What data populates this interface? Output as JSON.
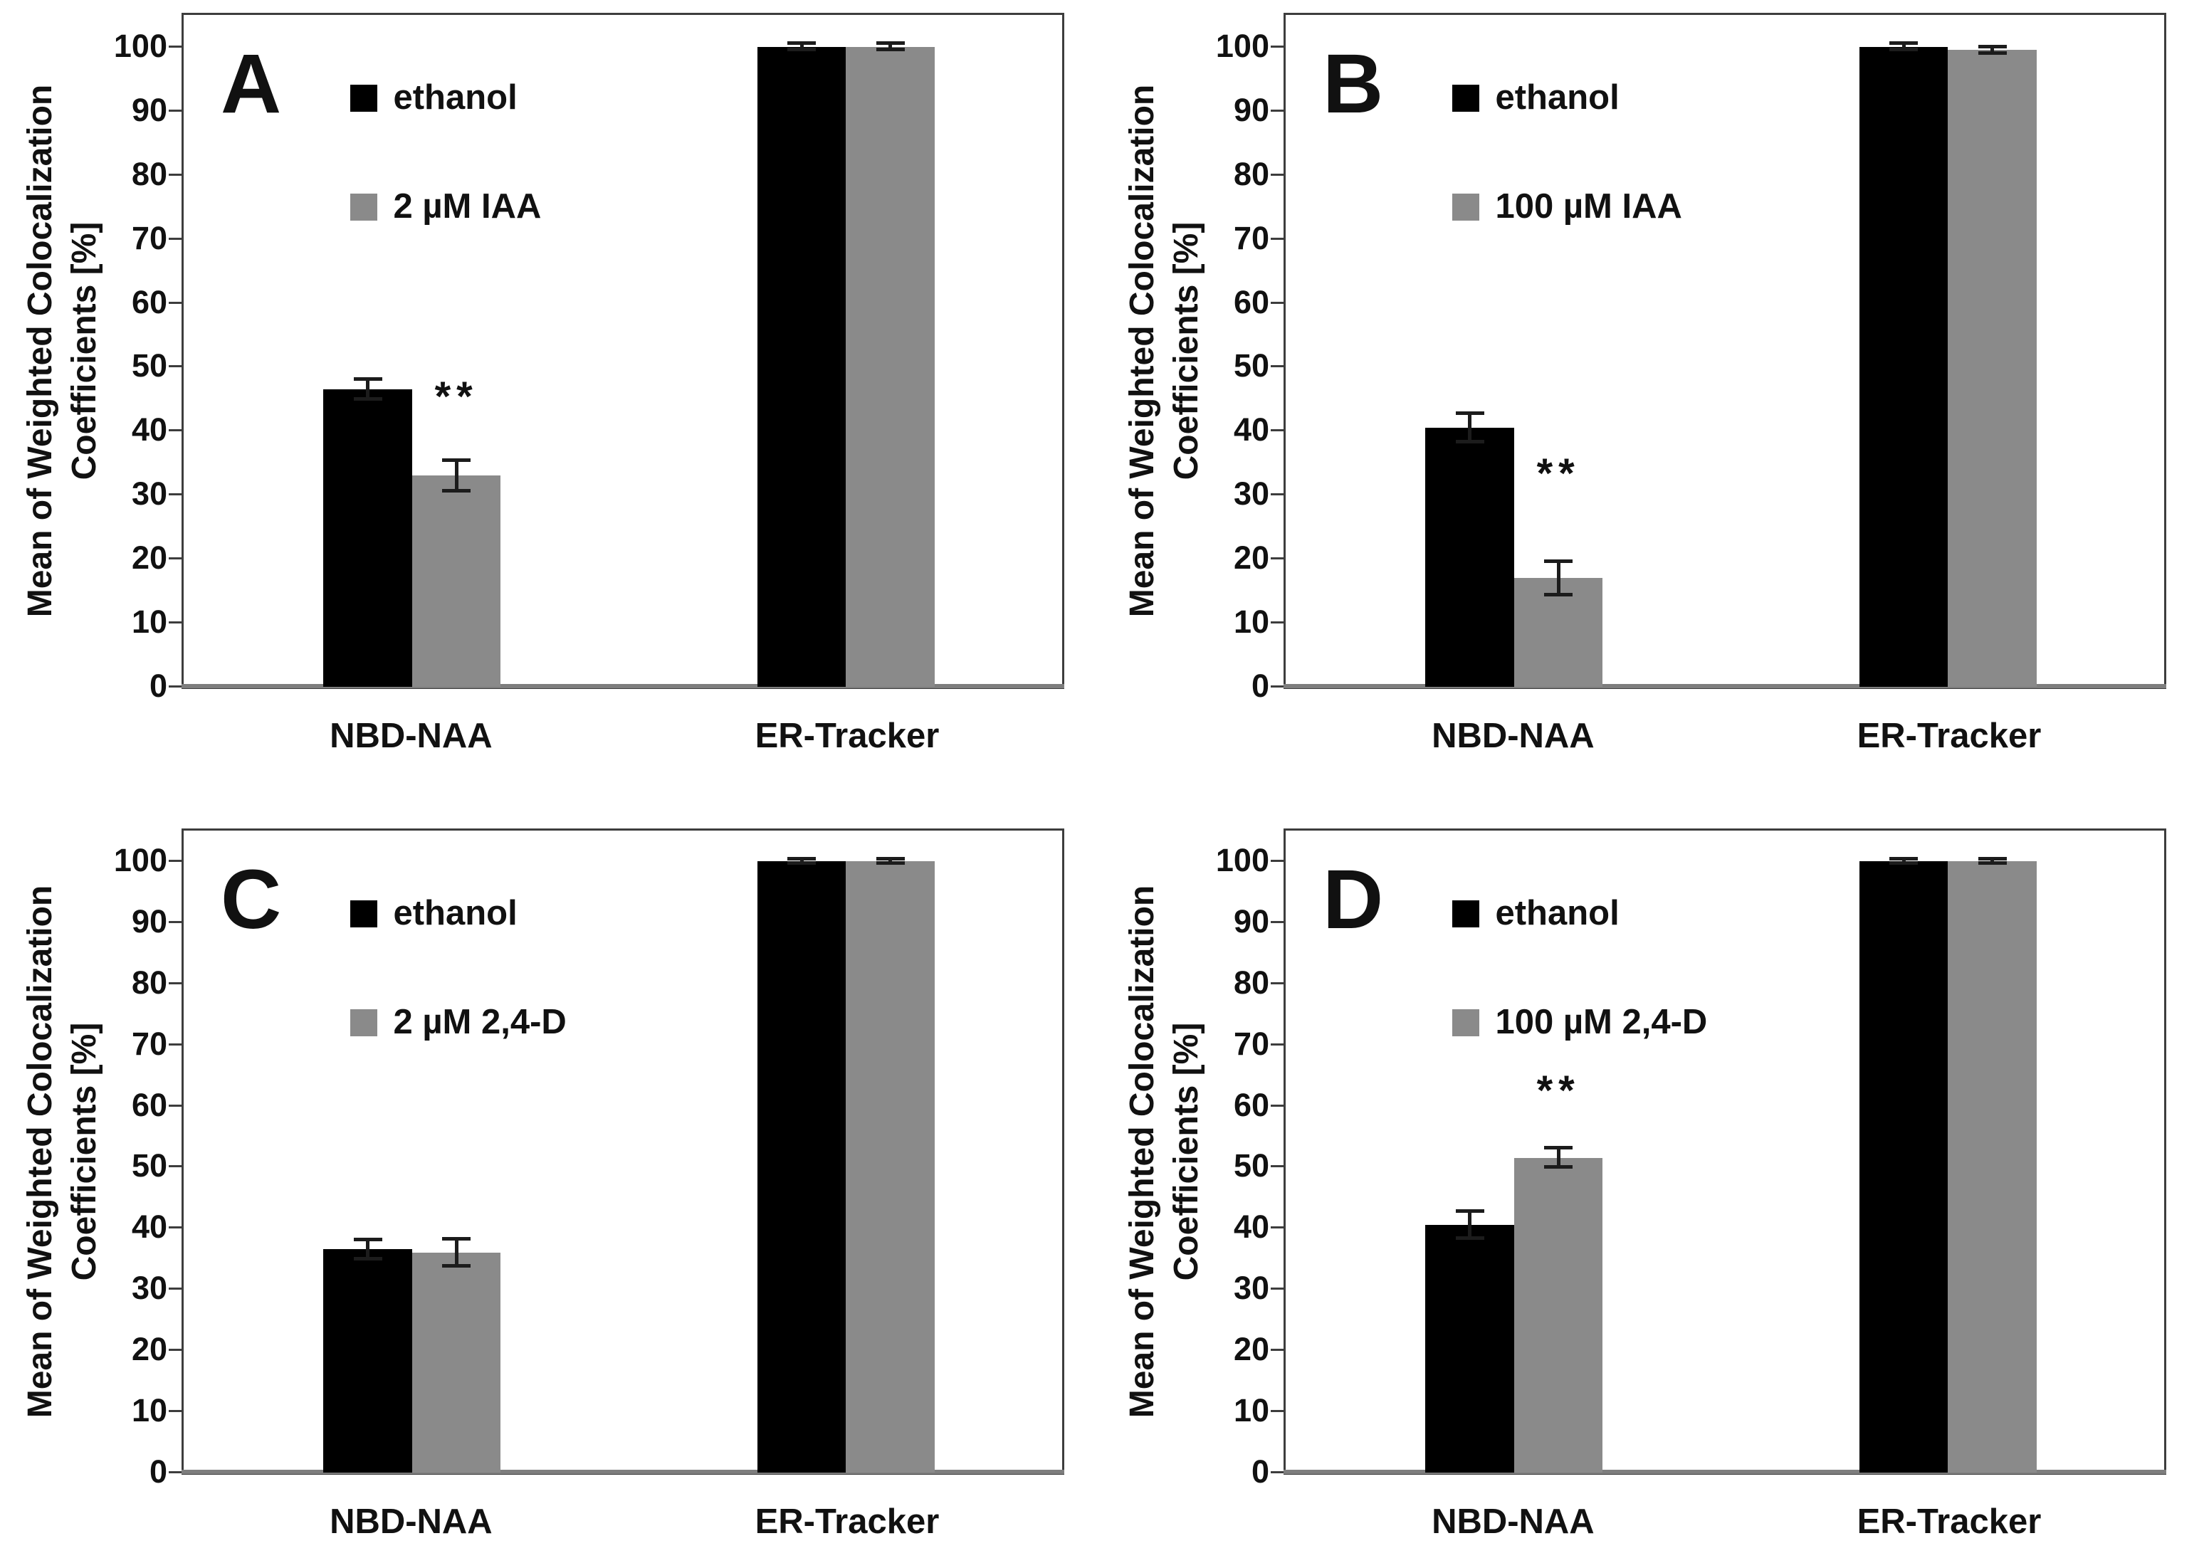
{
  "figure": {
    "background_color": "#ffffff",
    "axis_color": "#3d3d3d",
    "baseline_color": "#7e7e7e",
    "yticks": [
      0,
      10,
      20,
      30,
      40,
      50,
      60,
      70,
      80,
      90,
      100
    ],
    "ylabel_line1": "Mean of Weighted Colocalization",
    "ylabel_line2": "Coefficients [%]"
  },
  "chart_data": [
    {
      "type": "bar",
      "panel": "A",
      "categories": [
        "NBD-NAA",
        "ER-Tracker"
      ],
      "ylabel_line1": "Mean of Weighted Colocalization",
      "ylabel_line2": "Coefficients [%]",
      "ylim": [
        0,
        100
      ],
      "series": [
        {
          "name": "ethanol",
          "color": "#000000",
          "values": [
            46.5,
            100
          ],
          "errors": [
            1.6,
            0.5
          ]
        },
        {
          "name": "2 µM IAA",
          "color": "#8a8a8a",
          "values": [
            33,
            100
          ],
          "errors": [
            2.4,
            0.5
          ]
        }
      ],
      "significance": [
        {
          "category_index": 0,
          "series_index": 1,
          "label": "**",
          "y": 42
        }
      ]
    },
    {
      "type": "bar",
      "panel": "B",
      "categories": [
        "NBD-NAA",
        "ER-Tracker"
      ],
      "ylabel_line1": "Mean of Weighted Colocalization",
      "ylabel_line2": "Coefficients [%]",
      "ylim": [
        0,
        100
      ],
      "series": [
        {
          "name": "ethanol",
          "color": "#000000",
          "values": [
            40.5,
            100
          ],
          "errors": [
            2.2,
            0.5
          ]
        },
        {
          "name": "100 µM IAA",
          "color": "#8a8a8a",
          "values": [
            17,
            99.5
          ],
          "errors": [
            2.6,
            0.5
          ]
        }
      ],
      "significance": [
        {
          "category_index": 0,
          "series_index": 1,
          "label": "**",
          "y": 30
        }
      ]
    },
    {
      "type": "bar",
      "panel": "C",
      "categories": [
        "NBD-NAA",
        "ER-Tracker"
      ],
      "ylabel_line1": "Mean of Weighted Colocalization",
      "ylabel_line2": "Coefficients [%]",
      "ylim": [
        0,
        100
      ],
      "series": [
        {
          "name": "ethanol",
          "color": "#000000",
          "values": [
            36.5,
            100
          ],
          "errors": [
            1.6,
            0.4
          ]
        },
        {
          "name": "2 µM 2,4-D",
          "color": "#8a8a8a",
          "values": [
            36,
            100
          ],
          "errors": [
            2.2,
            0.4
          ]
        }
      ],
      "significance": []
    },
    {
      "type": "bar",
      "panel": "D",
      "categories": [
        "NBD-NAA",
        "ER-Tracker"
      ],
      "ylabel_line1": "Mean of Weighted Colocalization",
      "ylabel_line2": "Coefficients [%]",
      "ylim": [
        0,
        100
      ],
      "series": [
        {
          "name": "ethanol",
          "color": "#000000",
          "values": [
            40.5,
            100
          ],
          "errors": [
            2.2,
            0.4
          ]
        },
        {
          "name": "100 µM 2,4-D",
          "color": "#8a8a8a",
          "values": [
            51.5,
            100
          ],
          "errors": [
            1.6,
            0.4
          ]
        }
      ],
      "significance": [
        {
          "category_index": 0,
          "series_index": 1,
          "label": "**",
          "y": 59
        }
      ]
    }
  ]
}
